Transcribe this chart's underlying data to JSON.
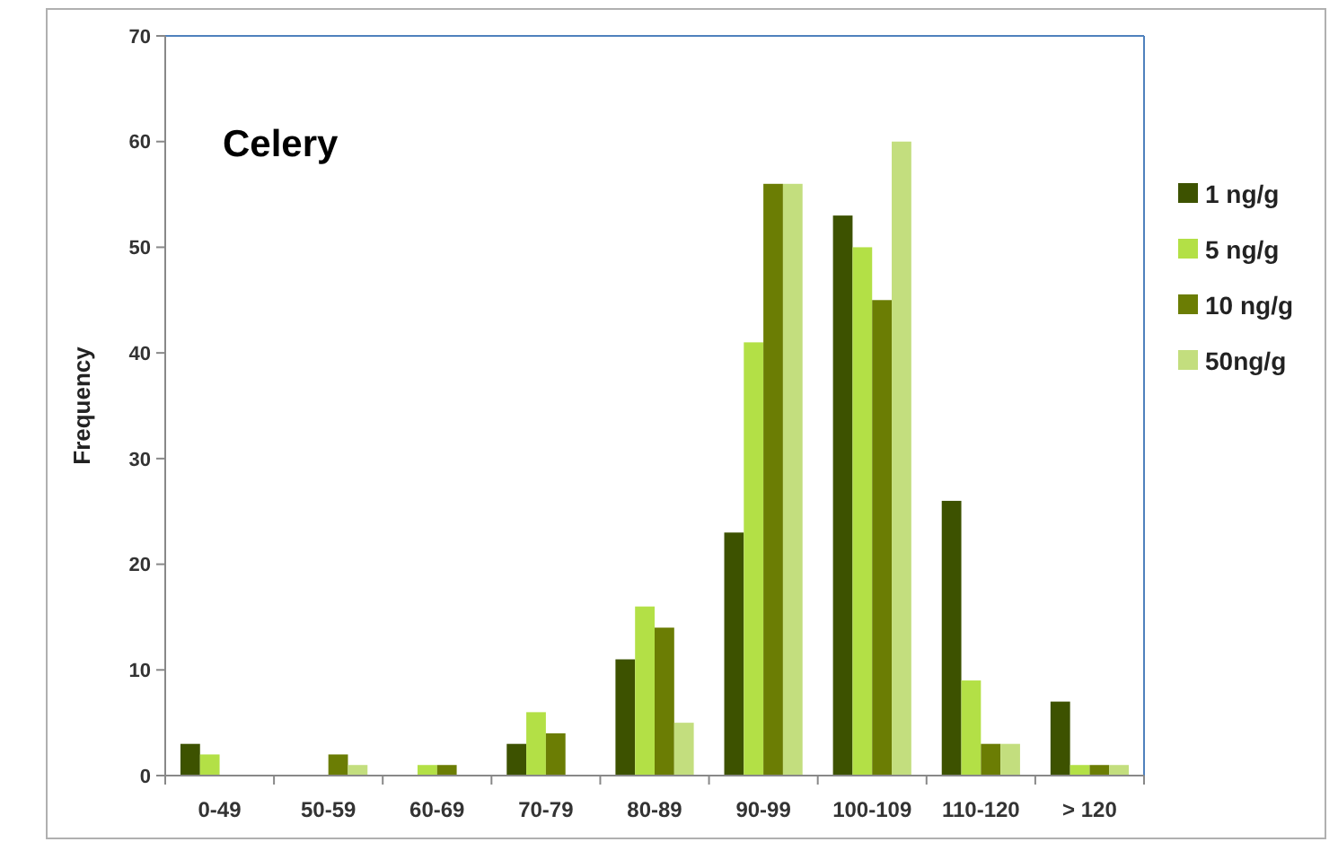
{
  "chart_data": {
    "type": "bar",
    "title": "Celery",
    "ylabel": "Frequency",
    "categories": [
      "0-49",
      "50-59",
      "60-69",
      "70-79",
      "80-89",
      "90-99",
      "100-109",
      "110-120",
      "> 120"
    ],
    "series": [
      {
        "name": "1 ng/g",
        "color": "#3d5200",
        "values": [
          3,
          0,
          0,
          3,
          11,
          23,
          53,
          26,
          7
        ]
      },
      {
        "name": "5 ng/g",
        "color": "#b3e046",
        "values": [
          2,
          0,
          1,
          6,
          16,
          41,
          50,
          9,
          1
        ]
      },
      {
        "name": "10 ng/g",
        "color": "#6b7d04",
        "values": [
          0,
          2,
          1,
          4,
          14,
          56,
          45,
          3,
          1
        ]
      },
      {
        "name": "50ng/g",
        "color": "#c3de7e",
        "values": [
          0,
          1,
          0,
          0,
          5,
          56,
          60,
          3,
          1
        ]
      }
    ],
    "ylim": [
      0,
      70
    ],
    "yticks": [
      0,
      10,
      20,
      30,
      40,
      50,
      60,
      70
    ],
    "grid": false,
    "legend": "right"
  }
}
